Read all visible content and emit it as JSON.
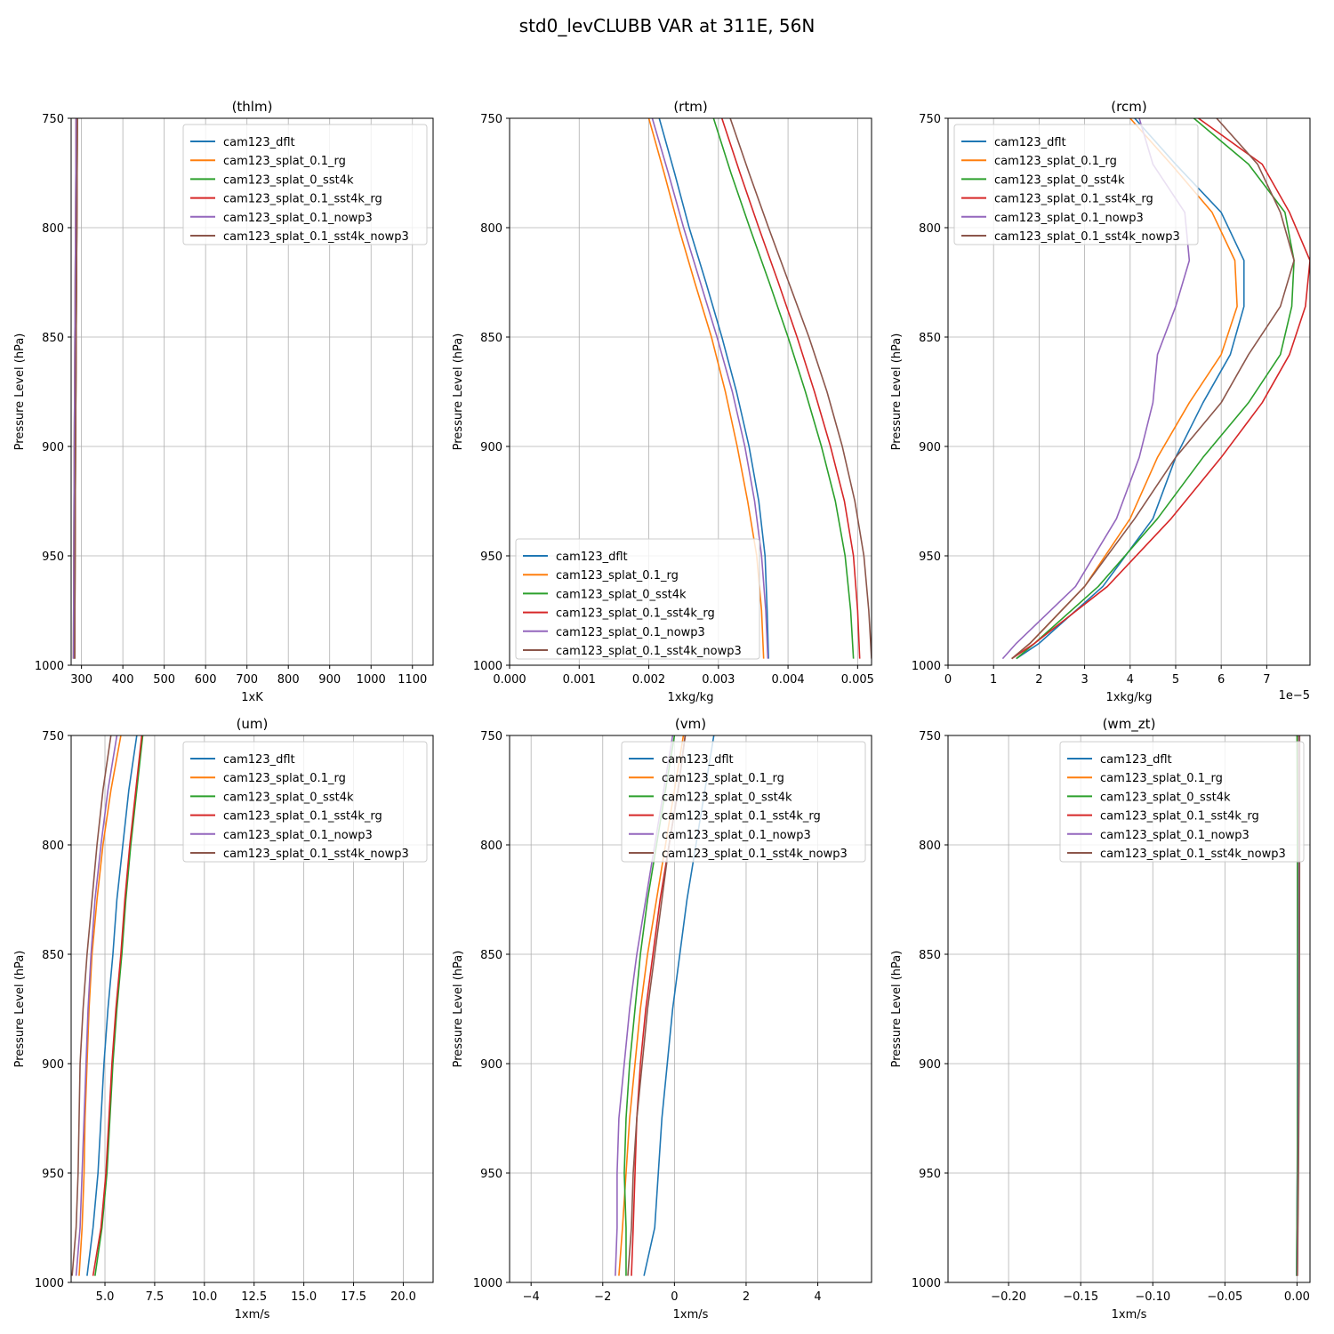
{
  "figure": {
    "title": "std0_levCLUBB VAR at 311E, 56N"
  },
  "legend_entries": [
    {
      "name": "cam123_dflt",
      "color": "#1f77b4"
    },
    {
      "name": "cam123_splat_0.1_rg",
      "color": "#ff7f0e"
    },
    {
      "name": "cam123_splat_0_sst4k",
      "color": "#2ca02c"
    },
    {
      "name": "cam123_splat_0.1_sst4k_rg",
      "color": "#d62728"
    },
    {
      "name": "cam123_splat_0.1_nowp3",
      "color": "#9467bd"
    },
    {
      "name": "cam123_splat_0.1_sst4k_nowp3",
      "color": "#8c564b"
    }
  ],
  "chart_data": [
    {
      "type": "line",
      "title": "(thlm)",
      "xlabel": "1xK",
      "ylabel": "Pressure Level (hPa)",
      "xlim": [
        275,
        1150
      ],
      "ylim": [
        1000,
        750
      ],
      "xticks": [
        300,
        400,
        500,
        600,
        700,
        800,
        900,
        1000,
        1100
      ],
      "xtick_labels": [
        "300",
        "400",
        "500",
        "600",
        "700",
        "800",
        "900",
        "1000",
        "1100"
      ],
      "yticks": [
        750,
        800,
        850,
        900,
        950,
        1000
      ],
      "ytick_labels": [
        "750",
        "800",
        "850",
        "900",
        "950",
        "1000"
      ],
      "grid": true,
      "legend_placement": "upper-right",
      "levels": [
        750,
        775,
        800,
        825,
        850,
        875,
        900,
        925,
        950,
        975,
        997
      ],
      "series": [
        {
          "name": "cam123_dflt",
          "color": "#1f77b4",
          "values": [
            287,
            286.4,
            285.7,
            284.9,
            284.1,
            283.4,
            282.6,
            282.0,
            281.5,
            281.0,
            280.6
          ]
        },
        {
          "name": "cam123_splat_0.1_rg",
          "color": "#ff7f0e",
          "values": [
            287,
            286.4,
            285.7,
            284.9,
            284.1,
            283.4,
            282.6,
            282.0,
            281.5,
            281.0,
            280.6
          ]
        },
        {
          "name": "cam123_splat_0_sst4k",
          "color": "#2ca02c",
          "values": [
            290,
            289.4,
            288.7,
            287.9,
            287.1,
            286.4,
            285.6,
            285.0,
            284.5,
            284.0,
            283.6
          ]
        },
        {
          "name": "cam123_splat_0.1_sst4k_rg",
          "color": "#d62728",
          "values": [
            290,
            289.4,
            288.7,
            287.9,
            287.1,
            286.4,
            285.6,
            285.0,
            284.5,
            284.0,
            283.6
          ]
        },
        {
          "name": "cam123_splat_0.1_nowp3",
          "color": "#9467bd",
          "values": [
            287,
            286.4,
            285.7,
            284.9,
            284.1,
            283.4,
            282.6,
            282.0,
            281.5,
            281.0,
            280.6
          ]
        },
        {
          "name": "cam123_splat_0.1_sst4k_nowp3",
          "color": "#8c564b",
          "values": [
            290,
            289.4,
            288.7,
            287.9,
            287.1,
            286.4,
            285.6,
            285.0,
            284.5,
            284.0,
            283.6
          ]
        }
      ]
    },
    {
      "type": "line",
      "title": "(rtm)",
      "xlabel": "1xkg/kg",
      "ylabel": "Pressure Level (hPa)",
      "xlim": [
        0,
        0.0052
      ],
      "ylim": [
        1000,
        750
      ],
      "xticks": [
        0,
        0.001,
        0.002,
        0.003,
        0.004,
        0.005
      ],
      "xtick_labels": [
        "0.000",
        "0.001",
        "0.002",
        "0.003",
        "0.004",
        "0.005"
      ],
      "yticks": [
        750,
        800,
        850,
        900,
        950,
        1000
      ],
      "ytick_labels": [
        "750",
        "800",
        "850",
        "900",
        "950",
        "1000"
      ],
      "grid": true,
      "legend_placement": "lower-left",
      "levels": [
        750,
        775,
        800,
        825,
        850,
        875,
        900,
        925,
        950,
        975,
        997
      ],
      "series": [
        {
          "name": "cam123_dflt",
          "color": "#1f77b4",
          "values": [
            0.00215,
            0.00237,
            0.00258,
            0.00282,
            0.00305,
            0.00326,
            0.00344,
            0.00358,
            0.00367,
            0.0037,
            0.00372
          ]
        },
        {
          "name": "cam123_splat_0.1_rg",
          "color": "#ff7f0e",
          "values": [
            0.002,
            0.00222,
            0.00243,
            0.00266,
            0.0029,
            0.0031,
            0.00327,
            0.00342,
            0.00355,
            0.00362,
            0.00365
          ]
        },
        {
          "name": "cam123_splat_0_sst4k",
          "color": "#2ca02c",
          "values": [
            0.00293,
            0.00318,
            0.00345,
            0.00373,
            0.004,
            0.00425,
            0.00448,
            0.00468,
            0.00482,
            0.0049,
            0.00494
          ]
        },
        {
          "name": "cam123_splat_0.1_sst4k_rg",
          "color": "#d62728",
          "values": [
            0.00305,
            0.00331,
            0.00358,
            0.00386,
            0.00413,
            0.00438,
            0.00461,
            0.00481,
            0.00494,
            0.005,
            0.00503
          ]
        },
        {
          "name": "cam123_splat_0.1_nowp3",
          "color": "#9467bd",
          "values": [
            0.00205,
            0.00228,
            0.0025,
            0.00274,
            0.00298,
            0.0032,
            0.00338,
            0.00352,
            0.00362,
            0.00368,
            0.00371
          ]
        },
        {
          "name": "cam123_splat_0.1_sst4k_nowp3",
          "color": "#8c564b",
          "values": [
            0.00317,
            0.00344,
            0.00372,
            0.00401,
            0.0043,
            0.00456,
            0.00478,
            0.00496,
            0.00509,
            0.00516,
            0.0052
          ]
        }
      ]
    },
    {
      "type": "line",
      "title": "(rcm)",
      "xlabel": "1xkg/kg",
      "ylabel": "Pressure Level (hPa)",
      "offset_text": "1e−5",
      "xlim": [
        0,
        7.95
      ],
      "ylim": [
        1000,
        750
      ],
      "xticks": [
        0,
        1,
        2,
        3,
        4,
        5,
        6,
        7
      ],
      "xtick_labels": [
        "0",
        "1",
        "2",
        "3",
        "4",
        "5",
        "6",
        "7"
      ],
      "yticks": [
        750,
        800,
        850,
        900,
        950,
        1000
      ],
      "ytick_labels": [
        "750",
        "800",
        "850",
        "900",
        "950",
        "1000"
      ],
      "grid": true,
      "legend_placement": "upper-left",
      "levels": [
        750,
        771,
        793,
        815,
        836,
        858,
        880,
        905,
        933,
        964,
        990,
        997
      ],
      "series": [
        {
          "name": "cam123_dflt",
          "color": "#1f77b4",
          "values": [
            4.1,
            5.0,
            6.0,
            6.5,
            6.5,
            6.2,
            5.6,
            5.0,
            4.5,
            3.4,
            2.0,
            1.5
          ]
        },
        {
          "name": "cam123_splat_0.1_rg",
          "color": "#ff7f0e",
          "values": [
            4.0,
            4.9,
            5.8,
            6.3,
            6.35,
            6.0,
            5.3,
            4.6,
            4.0,
            3.0,
            1.8,
            1.4
          ]
        },
        {
          "name": "cam123_splat_0_sst4k",
          "color": "#2ca02c",
          "values": [
            5.4,
            6.6,
            7.4,
            7.6,
            7.55,
            7.3,
            6.6,
            5.6,
            4.6,
            3.3,
            1.9,
            1.5
          ]
        },
        {
          "name": "cam123_splat_0.1_sst4k_rg",
          "color": "#d62728",
          "values": [
            5.5,
            6.9,
            7.5,
            7.95,
            7.85,
            7.5,
            6.9,
            6.0,
            4.9,
            3.5,
            1.9,
            1.4
          ]
        },
        {
          "name": "cam123_splat_0.1_nowp3",
          "color": "#9467bd",
          "values": [
            4.2,
            4.5,
            5.2,
            5.3,
            5.0,
            4.6,
            4.5,
            4.2,
            3.7,
            2.8,
            1.5,
            1.2
          ]
        },
        {
          "name": "cam123_splat_0.1_sst4k_nowp3",
          "color": "#8c564b",
          "values": [
            5.9,
            6.8,
            7.3,
            7.6,
            7.3,
            6.6,
            6.0,
            5.0,
            4.1,
            3.0,
            1.8,
            1.4
          ]
        }
      ]
    },
    {
      "type": "line",
      "title": "(um)",
      "xlabel": "1xm/s",
      "ylabel": "Pressure Level (hPa)",
      "xlim": [
        3.3,
        21.5
      ],
      "ylim": [
        1000,
        750
      ],
      "xticks": [
        5,
        7.5,
        10,
        12.5,
        15,
        17.5,
        20
      ],
      "xtick_labels": [
        "5.0",
        "7.5",
        "10.0",
        "12.5",
        "15.0",
        "17.5",
        "20.0"
      ],
      "yticks": [
        750,
        800,
        850,
        900,
        950,
        1000
      ],
      "ytick_labels": [
        "750",
        "800",
        "850",
        "900",
        "950",
        "1000"
      ],
      "grid": true,
      "legend_placement": "upper-right",
      "levels": [
        750,
        775,
        800,
        825,
        850,
        875,
        900,
        925,
        950,
        975,
        997
      ],
      "series": [
        {
          "name": "cam123_dflt",
          "color": "#1f77b4",
          "values": [
            6.6,
            6.2,
            5.9,
            5.6,
            5.4,
            5.15,
            4.95,
            4.8,
            4.65,
            4.4,
            4.1
          ]
        },
        {
          "name": "cam123_splat_0.1_rg",
          "color": "#ff7f0e",
          "values": [
            5.8,
            5.3,
            4.9,
            4.6,
            4.35,
            4.2,
            4.1,
            4.0,
            3.95,
            3.85,
            3.7
          ]
        },
        {
          "name": "cam123_splat_0_sst4k",
          "color": "#2ca02c",
          "values": [
            6.9,
            6.6,
            6.3,
            6.05,
            5.85,
            5.6,
            5.4,
            5.25,
            5.1,
            4.85,
            4.5
          ]
        },
        {
          "name": "cam123_splat_0.1_sst4k_rg",
          "color": "#d62728",
          "values": [
            6.85,
            6.55,
            6.25,
            6.0,
            5.8,
            5.55,
            5.35,
            5.2,
            5.05,
            4.8,
            4.4
          ]
        },
        {
          "name": "cam123_splat_0.1_nowp3",
          "color": "#9467bd",
          "values": [
            5.6,
            5.15,
            4.8,
            4.5,
            4.3,
            4.15,
            4.05,
            3.95,
            3.85,
            3.75,
            3.55
          ]
        },
        {
          "name": "cam123_splat_0.1_sst4k_nowp3",
          "color": "#8c564b",
          "values": [
            5.3,
            4.9,
            4.6,
            4.35,
            4.1,
            3.9,
            3.75,
            3.7,
            3.65,
            3.55,
            3.35
          ]
        }
      ]
    },
    {
      "type": "line",
      "title": "(vm)",
      "xlabel": "1xm/s",
      "ylabel": "Pressure Level (hPa)",
      "xlim": [
        -4.6,
        5.5
      ],
      "ylim": [
        1000,
        750
      ],
      "xticks": [
        -4,
        -2,
        0,
        2,
        4
      ],
      "xtick_labels": [
        "−4",
        "−2",
        "0",
        "2",
        "4"
      ],
      "yticks": [
        750,
        800,
        850,
        900,
        950,
        1000
      ],
      "ytick_labels": [
        "750",
        "800",
        "850",
        "900",
        "950",
        "1000"
      ],
      "grid": true,
      "legend_placement": "upper-right",
      "levels": [
        750,
        775,
        800,
        825,
        850,
        875,
        900,
        925,
        950,
        975,
        997
      ],
      "series": [
        {
          "name": "cam123_dflt",
          "color": "#1f77b4",
          "values": [
            1.1,
            0.85,
            0.6,
            0.35,
            0.15,
            -0.05,
            -0.2,
            -0.35,
            -0.45,
            -0.55,
            -0.85
          ]
        },
        {
          "name": "cam123_splat_0.1_rg",
          "color": "#ff7f0e",
          "values": [
            0.25,
            0.0,
            -0.25,
            -0.5,
            -0.75,
            -0.95,
            -1.1,
            -1.25,
            -1.35,
            -1.45,
            -1.55
          ]
        },
        {
          "name": "cam123_splat_0_sst4k",
          "color": "#2ca02c",
          "values": [
            0.0,
            -0.25,
            -0.5,
            -0.75,
            -0.95,
            -1.1,
            -1.25,
            -1.35,
            -1.4,
            -1.35,
            -1.35
          ]
        },
        {
          "name": "cam123_splat_0.1_sst4k_rg",
          "color": "#d62728",
          "values": [
            0.3,
            0.1,
            -0.15,
            -0.4,
            -0.6,
            -0.8,
            -0.95,
            -1.05,
            -1.1,
            -1.15,
            -1.2
          ]
        },
        {
          "name": "cam123_splat_0.1_nowp3",
          "color": "#9467bd",
          "values": [
            -0.05,
            -0.3,
            -0.55,
            -0.8,
            -1.05,
            -1.25,
            -1.4,
            -1.55,
            -1.6,
            -1.6,
            -1.65
          ]
        },
        {
          "name": "cam123_splat_0.1_sst4k_nowp3",
          "color": "#8c564b",
          "values": [
            0.3,
            0.1,
            -0.15,
            -0.35,
            -0.55,
            -0.75,
            -0.9,
            -1.05,
            -1.15,
            -1.2,
            -1.3
          ]
        }
      ]
    },
    {
      "type": "line",
      "title": "(wm_zt)",
      "xlabel": "1xm/s",
      "ylabel": "Pressure Level (hPa)",
      "xlim": [
        -0.242,
        0.009
      ],
      "ylim": [
        1000,
        750
      ],
      "xticks": [
        -0.2,
        -0.15,
        -0.1,
        -0.05,
        0
      ],
      "xtick_labels": [
        "−0.20",
        "−0.15",
        "−0.10",
        "−0.05",
        "0.00"
      ],
      "yticks": [
        750,
        800,
        850,
        900,
        950,
        1000
      ],
      "ytick_labels": [
        "750",
        "800",
        "850",
        "900",
        "950",
        "1000"
      ],
      "grid": true,
      "legend_placement": "upper-right",
      "levels": [
        750,
        800,
        850,
        900,
        950,
        997
      ],
      "series": [
        {
          "name": "cam123_dflt",
          "color": "#1f77b4",
          "values": [
            0.0005,
            0.0005,
            0.0005,
            0.0004,
            0.0002,
            -0.0003
          ]
        },
        {
          "name": "cam123_splat_0.1_rg",
          "color": "#ff7f0e",
          "values": [
            0.001,
            0.001,
            0.0009,
            0.0008,
            0.0005,
            0.0
          ]
        },
        {
          "name": "cam123_splat_0_sst4k",
          "color": "#2ca02c",
          "values": [
            0.0,
            0.0003,
            0.0004,
            0.0004,
            0.0002,
            -0.0003
          ]
        },
        {
          "name": "cam123_splat_0.1_sst4k_rg",
          "color": "#d62728",
          "values": [
            0.0015,
            0.0015,
            0.0014,
            0.0012,
            0.0008,
            0.0002
          ]
        },
        {
          "name": "cam123_splat_0.1_nowp3",
          "color": "#9467bd",
          "values": [
            0.0013,
            0.0013,
            0.0012,
            0.001,
            0.0007,
            0.0001
          ]
        },
        {
          "name": "cam123_splat_0.1_sst4k_nowp3",
          "color": "#8c564b",
          "values": [
            0.0018,
            0.0018,
            0.0017,
            0.0015,
            0.001,
            0.0003
          ]
        }
      ]
    }
  ]
}
